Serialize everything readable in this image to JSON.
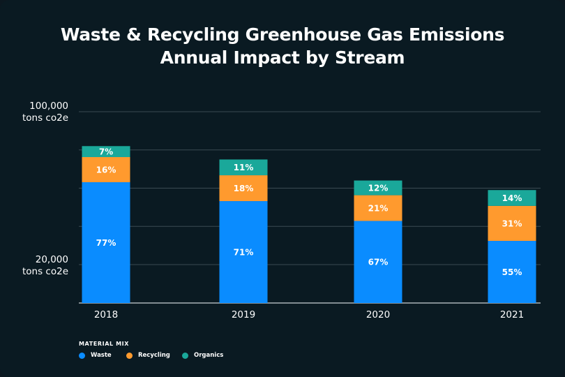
{
  "chart_data": {
    "type": "bar",
    "stacked": true,
    "title": "Waste & Recycling Greenhouse Gas Emissions",
    "subtitle": "Annual Impact by Stream",
    "categories": [
      "2018",
      "2019",
      "2020",
      "2021"
    ],
    "y_tick_labels": [
      {
        "value": 100000,
        "line1": "100,000",
        "line2": "tons co2e"
      },
      {
        "value": 20000,
        "line1": "20,000",
        "line2": "tons co2e"
      }
    ],
    "grid": true,
    "totals": [
      82000,
      75000,
      64000,
      59000
    ],
    "series": [
      {
        "name": "Waste",
        "color": "#0a8cff",
        "percent_labels": [
          "77%",
          "71%",
          "67%",
          "55%"
        ],
        "shares": [
          77,
          71,
          67,
          55
        ]
      },
      {
        "name": "Recycling",
        "color": "#ff9a2e",
        "percent_labels": [
          "16%",
          "18%",
          "21%",
          "31%"
        ],
        "shares": [
          16,
          18,
          21,
          31
        ]
      },
      {
        "name": "Organics",
        "color": "#1aa89a",
        "percent_labels": [
          "7%",
          "11%",
          "12%",
          "14%"
        ],
        "shares": [
          7,
          11,
          12,
          14
        ]
      }
    ],
    "legend_title": "MATERIAL MIX"
  }
}
